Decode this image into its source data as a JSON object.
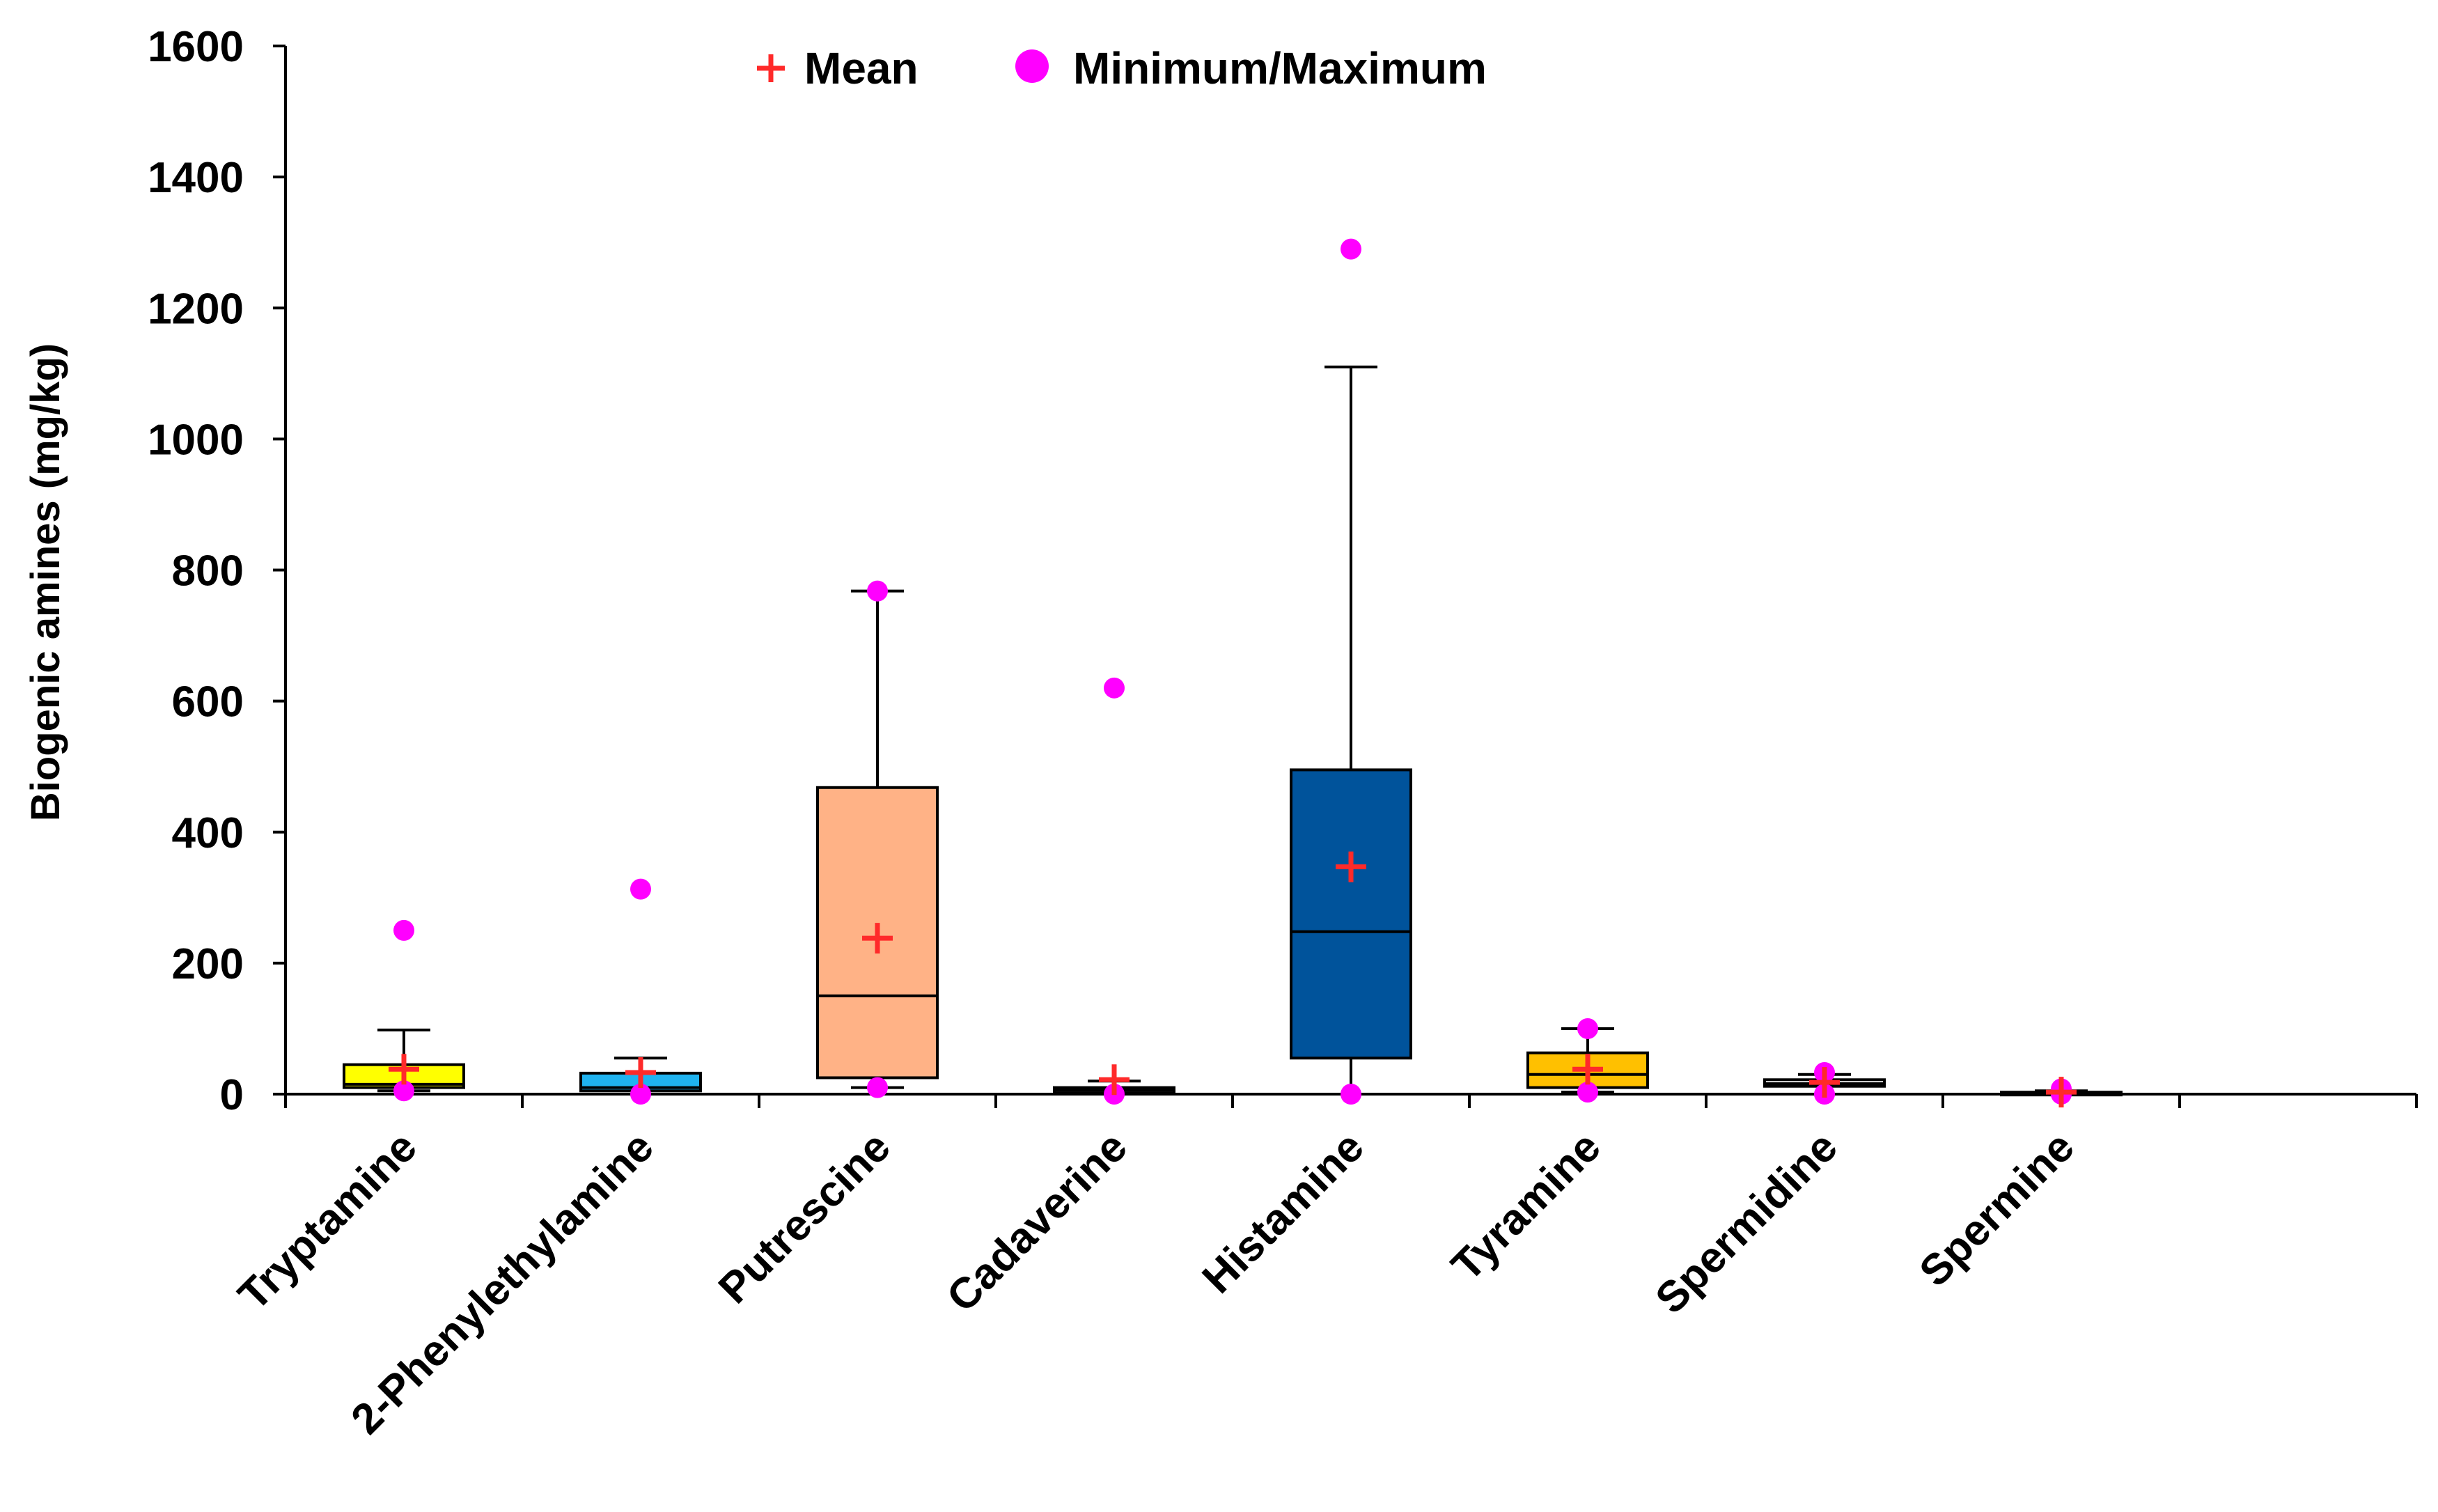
{
  "chart_data": {
    "type": "box",
    "title": "",
    "xlabel": "",
    "ylabel": "Biogenic amines (mg/kg)",
    "ylim": [
      0,
      1600
    ],
    "yticks": [
      0,
      200,
      400,
      600,
      800,
      1000,
      1200,
      1400,
      1600
    ],
    "grid": false,
    "legend": {
      "position": "top-center",
      "entries": [
        {
          "label": "Mean",
          "marker": "plus",
          "color": "#ff2a2a"
        },
        {
          "label": "Minimum/Maximum",
          "marker": "circle",
          "color": "#ff00ff"
        }
      ]
    },
    "categories": [
      "Tryptamine",
      "2-Phenylethylamine",
      "Putrescine",
      "Cadaverine",
      "Histamine",
      "Tyramine",
      "Spermidine",
      "Spermine"
    ],
    "series": [
      {
        "name": "Tryptamine",
        "color": "#ffff00",
        "whisker_low": 5,
        "q1": 10,
        "median": 15,
        "q3": 45,
        "whisker_high": 98,
        "mean": 38,
        "min": 5,
        "max": 250
      },
      {
        "name": "2-Phenylethylamine",
        "color": "#1fb3f0",
        "whisker_low": 0,
        "q1": 5,
        "median": 10,
        "q3": 32,
        "whisker_high": 55,
        "mean": 33,
        "min": 0,
        "max": 313
      },
      {
        "name": "Putrescine",
        "color": "#ffb286",
        "whisker_low": 10,
        "q1": 25,
        "median": 150,
        "q3": 468,
        "whisker_high": 768,
        "mean": 238,
        "min": 10,
        "max": 768
      },
      {
        "name": "Cadaverine",
        "color": "#ffffff",
        "whisker_low": 0,
        "q1": 2,
        "median": 6,
        "q3": 10,
        "whisker_high": 20,
        "mean": 22,
        "min": 0,
        "max": 620
      },
      {
        "name": "Histamine",
        "color": "#00539b",
        "whisker_low": 0,
        "q1": 55,
        "median": 248,
        "q3": 495,
        "whisker_high": 1110,
        "mean": 347,
        "min": 0,
        "max": 1290
      },
      {
        "name": "Tyramine",
        "color": "#ffc000",
        "whisker_low": 3,
        "q1": 10,
        "median": 30,
        "q3": 63,
        "whisker_high": 100,
        "mean": 38,
        "min": 3,
        "max": 100
      },
      {
        "name": "Spermidine",
        "color": "#ffffff",
        "whisker_low": 0,
        "q1": 12,
        "median": 16,
        "q3": 22,
        "whisker_high": 30,
        "mean": 18,
        "min": 0,
        "max": 33
      },
      {
        "name": "Spermine",
        "color": "#ffffff",
        "whisker_low": 0,
        "q1": 0,
        "median": 1,
        "q3": 3,
        "whisker_high": 5,
        "mean": 3,
        "min": 0,
        "max": 8
      }
    ]
  },
  "colors": {
    "axis": "#000000",
    "mean": "#ff2a2a",
    "minmax": "#ff00ff"
  }
}
